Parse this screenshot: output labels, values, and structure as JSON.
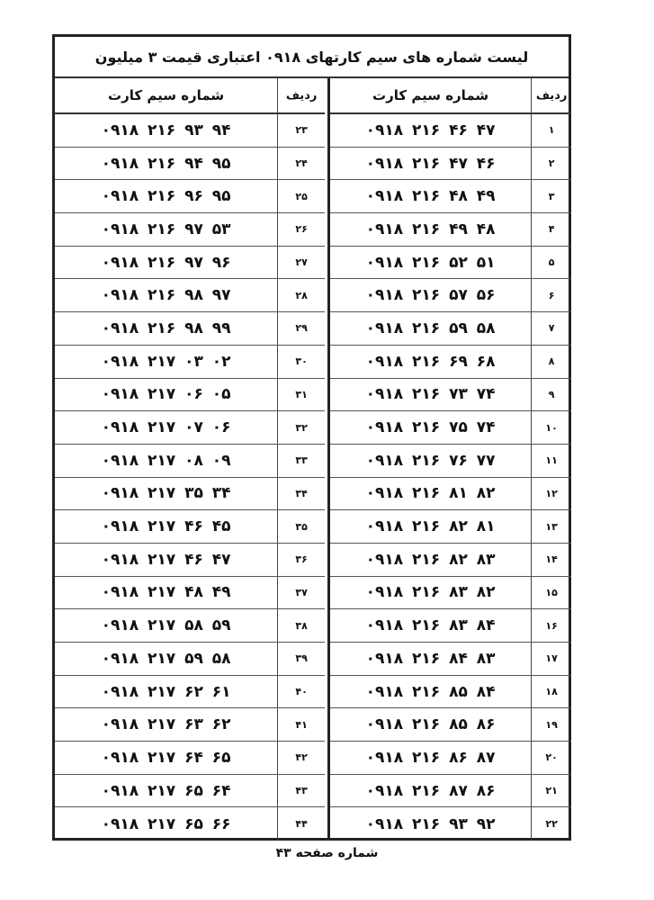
{
  "title": "لیست شماره های سیم کارتهای ۰۹۱۸ اعتباری قیمت ۳ میلیون",
  "headers": {
    "row_label": "ردیف",
    "sim_label": "شماره سیم کارت"
  },
  "right_rows": [
    {
      "n": "۱",
      "sim": "۰۹۱۸ ۲۱۶ ۴۶ ۴۷"
    },
    {
      "n": "۲",
      "sim": "۰۹۱۸ ۲۱۶ ۴۷ ۴۶"
    },
    {
      "n": "۳",
      "sim": "۰۹۱۸ ۲۱۶ ۴۸ ۴۹"
    },
    {
      "n": "۴",
      "sim": "۰۹۱۸ ۲۱۶ ۴۹ ۴۸"
    },
    {
      "n": "۵",
      "sim": "۰۹۱۸ ۲۱۶ ۵۲ ۵۱"
    },
    {
      "n": "۶",
      "sim": "۰۹۱۸ ۲۱۶ ۵۷ ۵۶"
    },
    {
      "n": "۷",
      "sim": "۰۹۱۸ ۲۱۶ ۵۹ ۵۸"
    },
    {
      "n": "۸",
      "sim": "۰۹۱۸ ۲۱۶ ۶۹ ۶۸"
    },
    {
      "n": "۹",
      "sim": "۰۹۱۸ ۲۱۶ ۷۳ ۷۴"
    },
    {
      "n": "۱۰",
      "sim": "۰۹۱۸ ۲۱۶ ۷۵ ۷۴"
    },
    {
      "n": "۱۱",
      "sim": "۰۹۱۸ ۲۱۶ ۷۶ ۷۷"
    },
    {
      "n": "۱۲",
      "sim": "۰۹۱۸ ۲۱۶ ۸۱ ۸۲"
    },
    {
      "n": "۱۳",
      "sim": "۰۹۱۸ ۲۱۶ ۸۲ ۸۱"
    },
    {
      "n": "۱۴",
      "sim": "۰۹۱۸ ۲۱۶ ۸۲ ۸۳"
    },
    {
      "n": "۱۵",
      "sim": "۰۹۱۸ ۲۱۶ ۸۳ ۸۲"
    },
    {
      "n": "۱۶",
      "sim": "۰۹۱۸ ۲۱۶ ۸۳ ۸۴"
    },
    {
      "n": "۱۷",
      "sim": "۰۹۱۸ ۲۱۶ ۸۴ ۸۳"
    },
    {
      "n": "۱۸",
      "sim": "۰۹۱۸ ۲۱۶ ۸۵ ۸۴"
    },
    {
      "n": "۱۹",
      "sim": "۰۹۱۸ ۲۱۶ ۸۵ ۸۶"
    },
    {
      "n": "۲۰",
      "sim": "۰۹۱۸ ۲۱۶ ۸۶ ۸۷"
    },
    {
      "n": "۲۱",
      "sim": "۰۹۱۸ ۲۱۶ ۸۷ ۸۶"
    },
    {
      "n": "۲۲",
      "sim": "۰۹۱۸ ۲۱۶ ۹۳ ۹۲"
    }
  ],
  "left_rows": [
    {
      "n": "۲۳",
      "sim": "۰۹۱۸ ۲۱۶ ۹۳ ۹۴"
    },
    {
      "n": "۲۴",
      "sim": "۰۹۱۸ ۲۱۶ ۹۴ ۹۵"
    },
    {
      "n": "۲۵",
      "sim": "۰۹۱۸ ۲۱۶ ۹۶ ۹۵"
    },
    {
      "n": "۲۶",
      "sim": "۰۹۱۸ ۲۱۶ ۹۷ ۵۳"
    },
    {
      "n": "۲۷",
      "sim": "۰۹۱۸ ۲۱۶ ۹۷ ۹۶"
    },
    {
      "n": "۲۸",
      "sim": "۰۹۱۸ ۲۱۶ ۹۸ ۹۷"
    },
    {
      "n": "۲۹",
      "sim": "۰۹۱۸ ۲۱۶ ۹۸ ۹۹"
    },
    {
      "n": "۳۰",
      "sim": "۰۹۱۸ ۲۱۷ ۰۳ ۰۲"
    },
    {
      "n": "۳۱",
      "sim": "۰۹۱۸ ۲۱۷ ۰۶ ۰۵"
    },
    {
      "n": "۳۲",
      "sim": "۰۹۱۸ ۲۱۷ ۰۷ ۰۶"
    },
    {
      "n": "۳۳",
      "sim": "۰۹۱۸ ۲۱۷ ۰۸ ۰۹"
    },
    {
      "n": "۳۴",
      "sim": "۰۹۱۸ ۲۱۷ ۳۵ ۳۴"
    },
    {
      "n": "۳۵",
      "sim": "۰۹۱۸ ۲۱۷ ۴۶ ۴۵"
    },
    {
      "n": "۳۶",
      "sim": "۰۹۱۸ ۲۱۷ ۴۶ ۴۷"
    },
    {
      "n": "۳۷",
      "sim": "۰۹۱۸ ۲۱۷ ۴۸ ۴۹"
    },
    {
      "n": "۳۸",
      "sim": "۰۹۱۸ ۲۱۷ ۵۸ ۵۹"
    },
    {
      "n": "۳۹",
      "sim": "۰۹۱۸ ۲۱۷ ۵۹ ۵۸"
    },
    {
      "n": "۴۰",
      "sim": "۰۹۱۸ ۲۱۷ ۶۲ ۶۱"
    },
    {
      "n": "۴۱",
      "sim": "۰۹۱۸ ۲۱۷ ۶۳ ۶۲"
    },
    {
      "n": "۴۲",
      "sim": "۰۹۱۸ ۲۱۷ ۶۴ ۶۵"
    },
    {
      "n": "۴۳",
      "sim": "۰۹۱۸ ۲۱۷ ۶۵ ۶۴"
    },
    {
      "n": "۴۴",
      "sim": "۰۹۱۸ ۲۱۷ ۶۵ ۶۶"
    }
  ],
  "footer": "شماره صفحه ۴۳"
}
